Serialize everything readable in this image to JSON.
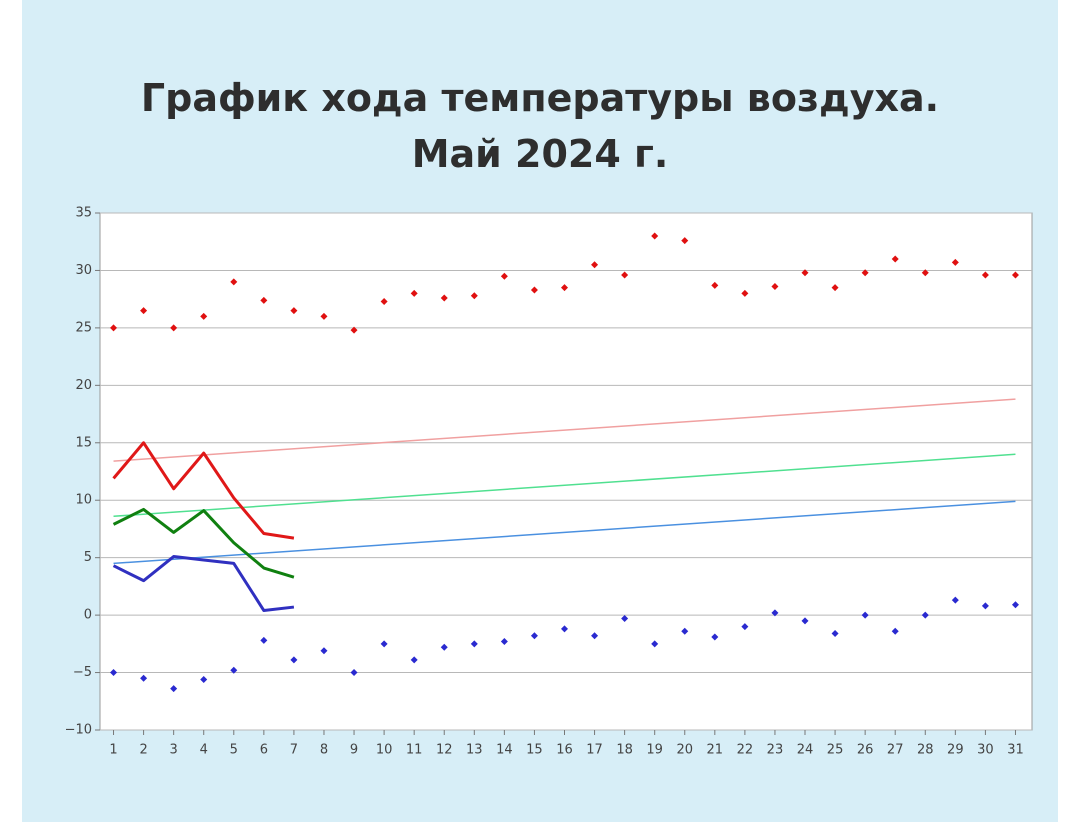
{
  "chart_data": {
    "type": "line",
    "title": [
      "График хода температуры воздуха.",
      "Май 2024 г."
    ],
    "xlim": [
      0.55,
      31.55
    ],
    "ylim": [
      -10,
      35
    ],
    "xticks": [
      1,
      2,
      3,
      4,
      5,
      6,
      7,
      8,
      9,
      10,
      11,
      12,
      13,
      14,
      15,
      16,
      17,
      18,
      19,
      20,
      21,
      22,
      23,
      24,
      25,
      26,
      27,
      28,
      29,
      30,
      31
    ],
    "yticks": [
      35,
      30,
      25,
      20,
      15,
      10,
      5,
      0,
      {
        "value": -5,
        "label": "−5"
      },
      {
        "value": -10,
        "label": "−10"
      }
    ],
    "grid": true,
    "series": [
      {
        "type": "scatter",
        "color": "#e01010",
        "x": [
          1,
          2,
          3,
          4,
          5,
          6,
          7,
          8,
          9,
          10,
          11,
          12,
          13,
          14,
          15,
          16,
          17,
          18,
          19,
          20,
          21,
          22,
          23,
          24,
          25,
          26,
          27,
          28,
          29,
          30,
          31
        ],
        "values": [
          25,
          26.5,
          25,
          26,
          29,
          27.4,
          26.5,
          26,
          24.8,
          27.3,
          28,
          27.6,
          27.8,
          29.5,
          28.3,
          28.5,
          30.5,
          29.6,
          33,
          32.6,
          28.7,
          28,
          28.6,
          29.8,
          28.5,
          29.8,
          31,
          29.8,
          30.7,
          29.6,
          29.6
        ]
      },
      {
        "type": "scatter",
        "color": "#2a2ad0",
        "x": [
          1,
          2,
          3,
          4,
          5,
          6,
          7,
          8,
          9,
          10,
          11,
          12,
          13,
          14,
          15,
          16,
          17,
          18,
          19,
          20,
          21,
          22,
          23,
          24,
          25,
          26,
          27,
          28,
          29,
          30,
          31
        ],
        "values": [
          -5,
          -5.5,
          -6.4,
          -5.6,
          -4.8,
          -2.2,
          -3.9,
          -3.1,
          -5,
          -2.5,
          -3.9,
          -2.8,
          -2.5,
          -2.3,
          -1.8,
          -1.2,
          -1.8,
          -0.3,
          -2.5,
          -1.4,
          -1.9,
          -1,
          0.2,
          -0.5,
          -1.6,
          0,
          -1.4,
          0,
          1.3,
          0.8,
          0.9
        ]
      },
      {
        "type": "line",
        "color": "#f0a0a0",
        "width": 1.5,
        "x": [
          1,
          31
        ],
        "values": [
          13.4,
          18.8
        ]
      },
      {
        "type": "line",
        "color": "#50e090",
        "width": 1.5,
        "x": [
          1,
          31
        ],
        "values": [
          8.6,
          14
        ]
      },
      {
        "type": "line",
        "color": "#4a90e0",
        "width": 1.5,
        "x": [
          1,
          31
        ],
        "values": [
          4.5,
          9.9
        ]
      },
      {
        "type": "line",
        "color": "#e01818",
        "width": 3,
        "x": [
          1,
          2,
          3,
          4,
          5,
          6,
          7
        ],
        "values": [
          11.9,
          15,
          11,
          14.1,
          10.2,
          7.1,
          6.7
        ]
      },
      {
        "type": "line",
        "color": "#108010",
        "width": 3,
        "x": [
          1,
          2,
          3,
          4,
          5,
          6,
          7
        ],
        "values": [
          7.9,
          9.2,
          7.2,
          9.1,
          6.3,
          4.1,
          3.3
        ]
      },
      {
        "type": "line",
        "color": "#3030c0",
        "width": 3,
        "x": [
          1,
          2,
          3,
          4,
          5,
          6,
          7
        ],
        "values": [
          4.3,
          3,
          5.1,
          4.8,
          4.5,
          0.4,
          0.7
        ]
      }
    ]
  }
}
